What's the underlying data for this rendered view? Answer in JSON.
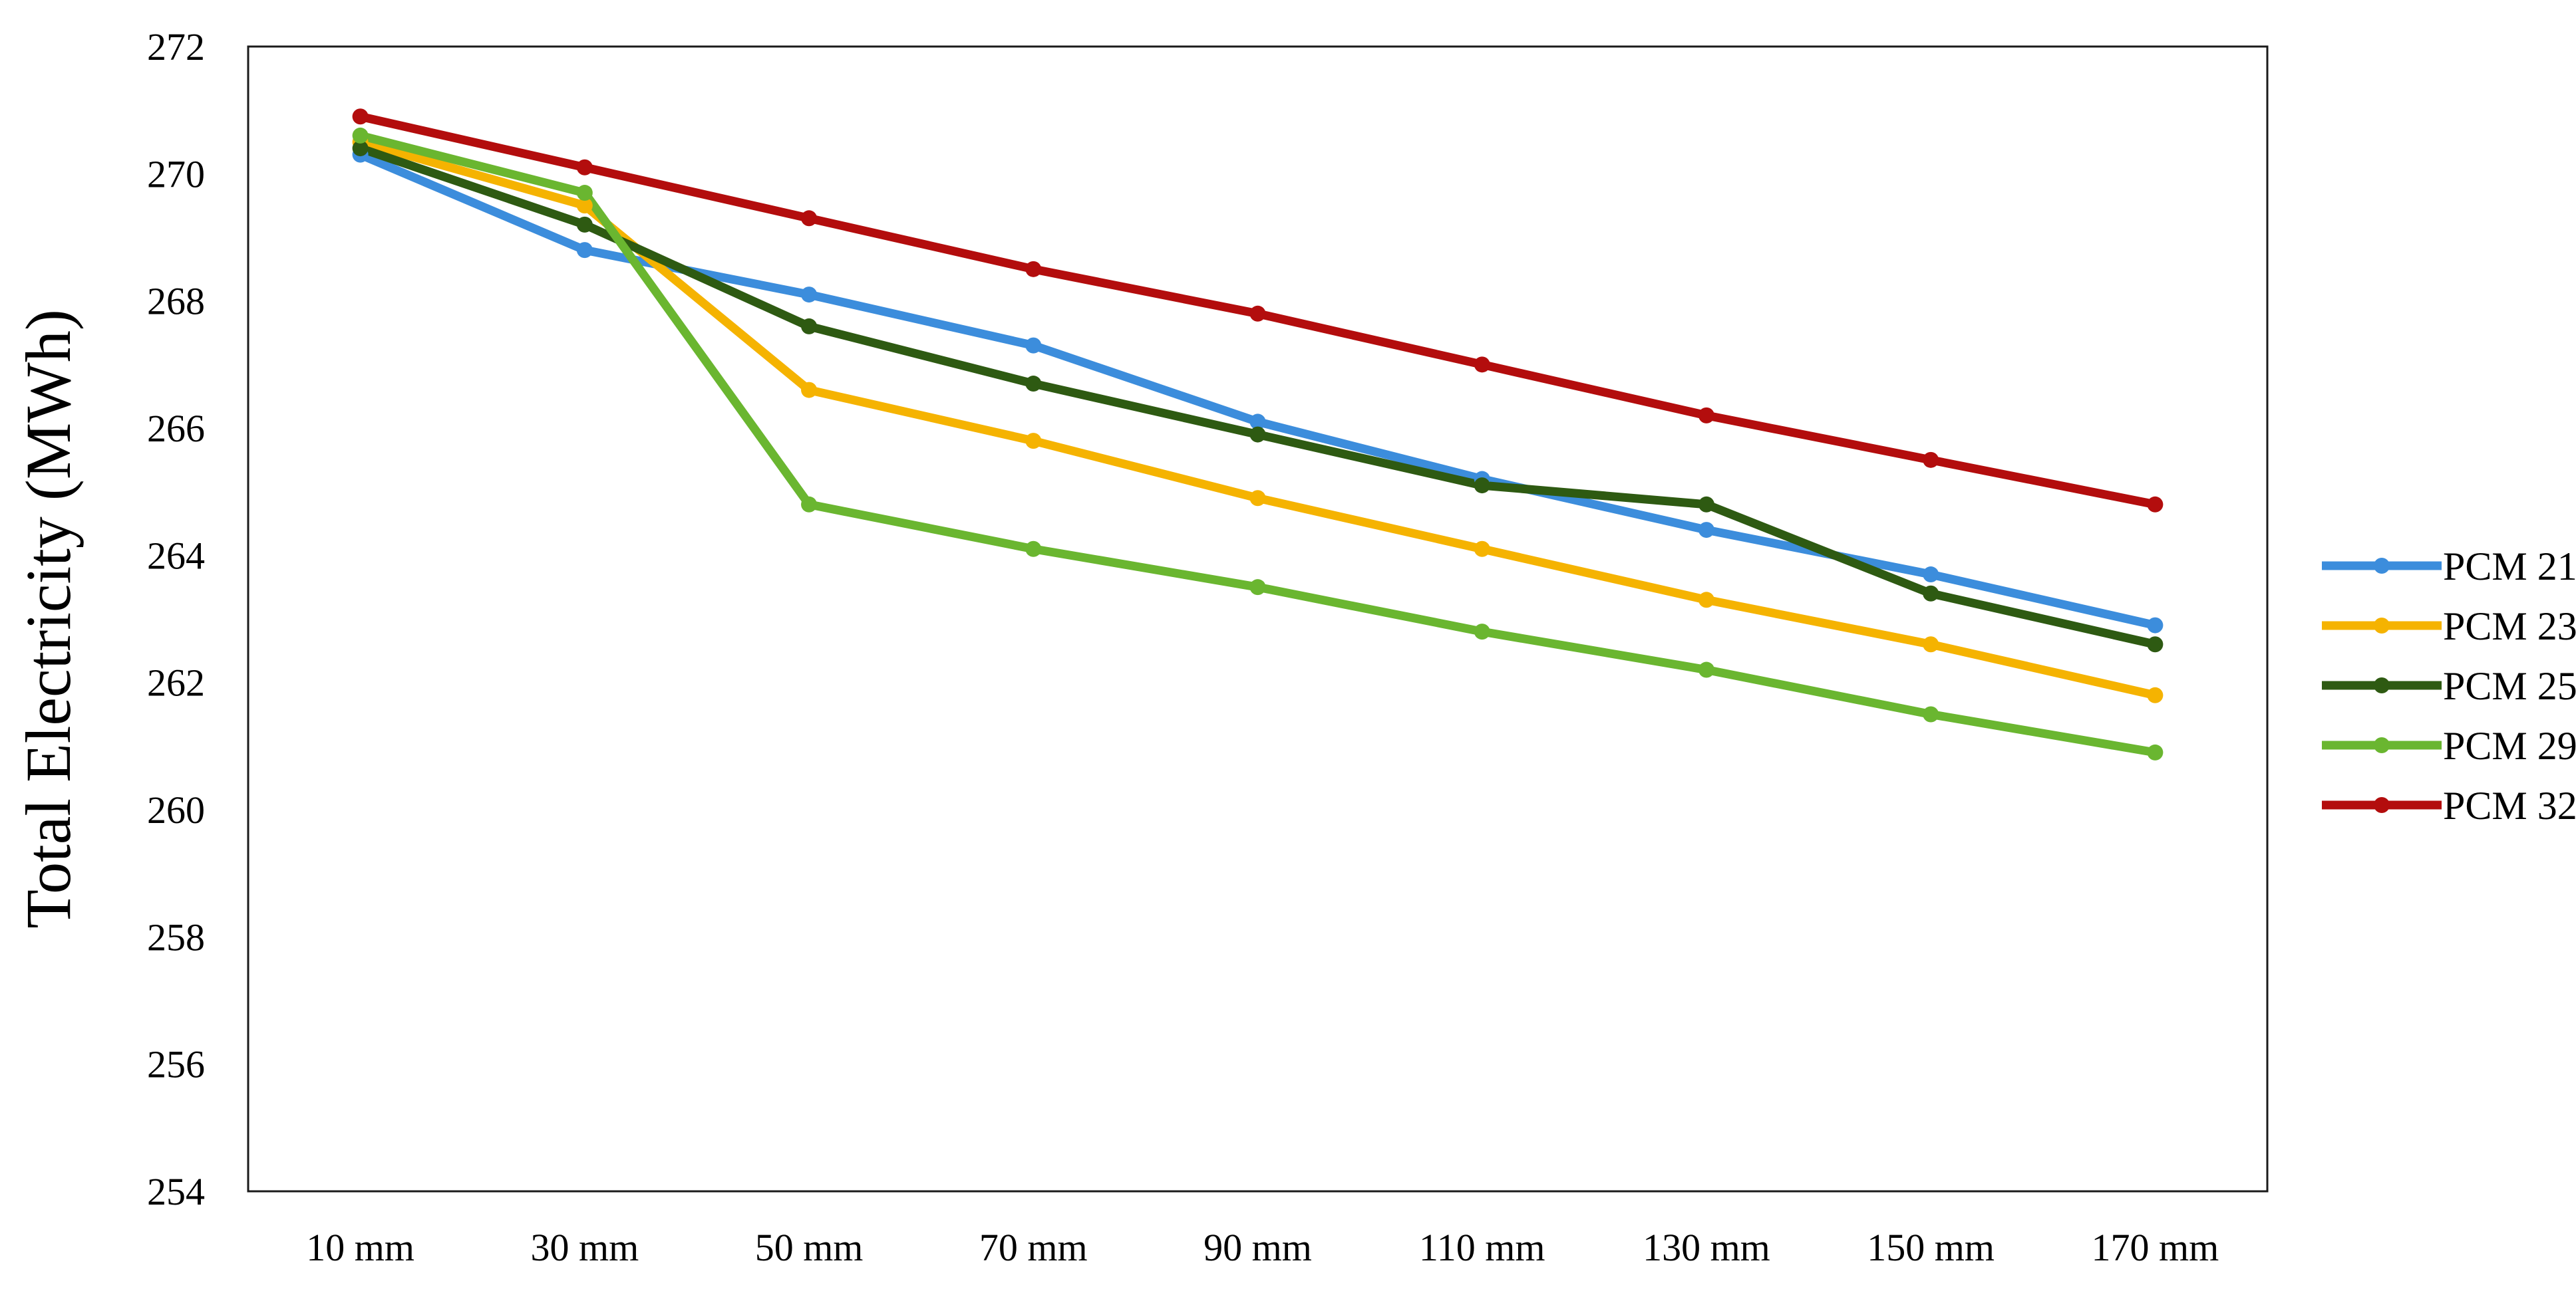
{
  "chart_data": {
    "type": "line",
    "title": "",
    "xlabel": "",
    "ylabel": "Total Electricity (MWh)",
    "categories": [
      "10 mm",
      "30 mm",
      "50 mm",
      "70 mm",
      "90 mm",
      "110 mm",
      "130 mm",
      "150 mm",
      "170 mm"
    ],
    "ylim": [
      254,
      272
    ],
    "yticks": [
      254,
      256,
      258,
      260,
      262,
      264,
      266,
      268,
      270,
      272
    ],
    "grid": false,
    "legend_position": "right",
    "series": [
      {
        "name": "PCM 21",
        "color": "#3c8ddc",
        "values": [
          270.3,
          268.8,
          268.1,
          267.3,
          266.1,
          265.2,
          264.4,
          263.7,
          262.9
        ]
      },
      {
        "name": "PCM 23",
        "color": "#f5b301",
        "values": [
          270.5,
          269.5,
          266.6,
          265.8,
          264.9,
          264.1,
          263.3,
          262.6,
          261.8
        ]
      },
      {
        "name": "PCM 25",
        "color": "#2e5a12",
        "values": [
          270.4,
          269.2,
          267.6,
          266.7,
          265.9,
          265.1,
          264.8,
          263.4,
          262.6
        ]
      },
      {
        "name": "PCM 29",
        "color": "#6ab630",
        "values": [
          270.6,
          269.7,
          264.8,
          264.1,
          263.5,
          262.8,
          262.2,
          261.5,
          260.9
        ]
      },
      {
        "name": "PCM 32",
        "color": "#b30d0d",
        "values": [
          270.9,
          270.1,
          269.3,
          268.5,
          267.8,
          267.0,
          266.2,
          265.5,
          264.8
        ]
      }
    ]
  }
}
